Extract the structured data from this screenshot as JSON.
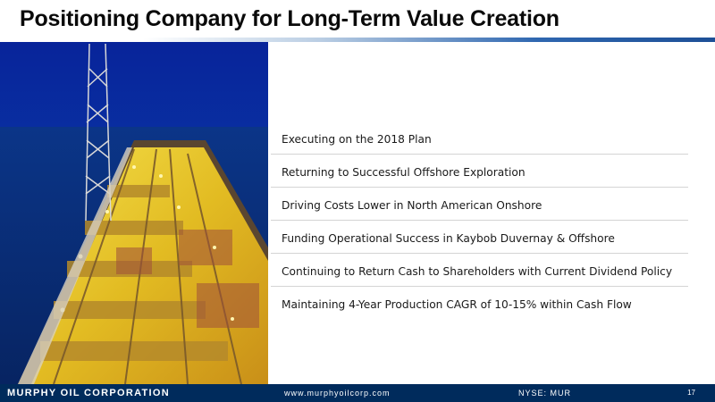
{
  "slide": {
    "title": "Positioning Company for Long-Term Value Creation",
    "bullets": [
      "Executing on the 2018 Plan",
      "Returning to Successful Offshore Exploration",
      "Driving Costs Lower in North American Onshore",
      "Funding Operational Success in Kaybob Duvernay & Offshore",
      "Continuing to Return Cash to Shareholders with Current Dividend Policy",
      "Maintaining 4-Year Production CAGR of 10-15% within Cash Flow"
    ]
  },
  "footer": {
    "company": "MURPHY OIL CORPORATION",
    "website": "www.murphyoilcorp.com",
    "ticker": "NYSE: MUR",
    "page_number": "17"
  },
  "colors": {
    "footer_bg": "#002b5c",
    "accent_blue": "#2f67b0",
    "deck_yellow": "#e8c81e",
    "sea_blue": "#0a2f7a"
  }
}
